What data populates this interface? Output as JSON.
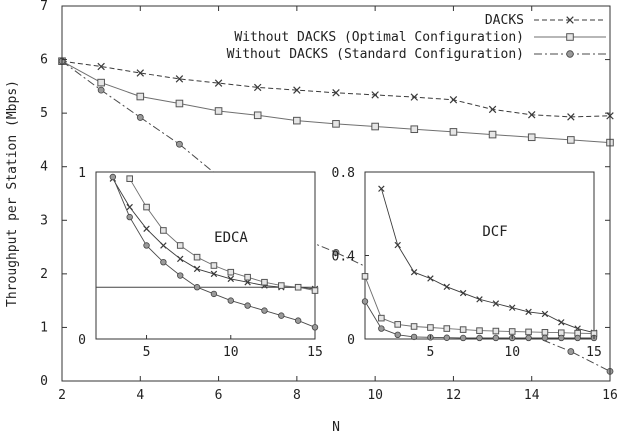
{
  "chart_data": [
    {
      "type": "line",
      "xlabel": "N",
      "ylabel": "Throughput per Station (Mbps)",
      "xlim": [
        2,
        16
      ],
      "ylim": [
        0,
        7
      ],
      "xticks": [
        2,
        4,
        6,
        8,
        10,
        12,
        14,
        16
      ],
      "yticks": [
        0,
        1,
        2,
        3,
        4,
        5,
        6,
        7
      ],
      "grid": false,
      "legend_position": "top-right",
      "series": [
        {
          "name": "DACKS",
          "marker": "x",
          "line": "dashed",
          "points": [
            [
              2,
              5.97
            ],
            [
              3,
              5.87
            ],
            [
              4,
              5.75
            ],
            [
              5,
              5.64
            ],
            [
              6,
              5.56
            ],
            [
              7,
              5.48
            ],
            [
              8,
              5.43
            ],
            [
              9,
              5.38
            ],
            [
              10,
              5.34
            ],
            [
              11,
              5.3
            ],
            [
              12,
              5.25
            ],
            [
              13,
              5.07
            ],
            [
              14,
              4.97
            ],
            [
              15,
              4.93
            ],
            [
              16,
              4.95
            ]
          ]
        },
        {
          "name": "Without DACKS (Optimal Configuration)",
          "marker": "square",
          "line": "solid",
          "points": [
            [
              2,
              5.97
            ],
            [
              3,
              5.57
            ],
            [
              4,
              5.31
            ],
            [
              5,
              5.18
            ],
            [
              6,
              5.04
            ],
            [
              7,
              4.96
            ],
            [
              8,
              4.86
            ],
            [
              9,
              4.8
            ],
            [
              10,
              4.75
            ],
            [
              11,
              4.7
            ],
            [
              12,
              4.65
            ],
            [
              13,
              4.6
            ],
            [
              14,
              4.55
            ],
            [
              15,
              4.5
            ],
            [
              16,
              4.45
            ]
          ]
        },
        {
          "name": "Without DACKS (Standard Configuration)",
          "marker": "circle",
          "line": "dash-dot",
          "points": [
            [
              2,
              5.97
            ],
            [
              3,
              5.43
            ],
            [
              4,
              4.92
            ],
            [
              5,
              4.42
            ],
            [
              6,
              3.82
            ],
            [
              7,
              3.25
            ],
            [
              8,
              2.7
            ],
            [
              9,
              2.4
            ],
            [
              10,
              2.05
            ],
            [
              11,
              1.75
            ],
            [
              12,
              1.45
            ],
            [
              13,
              1.15
            ],
            [
              14,
              0.85
            ],
            [
              15,
              0.55
            ],
            [
              16,
              0.18
            ]
          ]
        }
      ]
    },
    {
      "type": "line",
      "title": "EDCA",
      "xlim": [
        2,
        15
      ],
      "ylim": [
        0,
        1
      ],
      "xticks": [
        5,
        10,
        15
      ],
      "yticks": [
        0,
        1
      ],
      "hline": 0.31,
      "series": [
        {
          "name": "DACKS",
          "marker": "x",
          "points": [
            [
              3,
              0.96
            ],
            [
              4,
              0.79
            ],
            [
              5,
              0.66
            ],
            [
              6,
              0.56
            ],
            [
              7,
              0.48
            ],
            [
              8,
              0.42
            ],
            [
              9,
              0.39
            ],
            [
              10,
              0.36
            ],
            [
              11,
              0.34
            ],
            [
              12,
              0.32
            ],
            [
              13,
              0.31
            ],
            [
              14,
              0.31
            ],
            [
              15,
              0.3
            ]
          ]
        },
        {
          "name": "Without DACKS (Optimal Configuration)",
          "marker": "square",
          "points": [
            [
              4,
              0.96
            ],
            [
              5,
              0.79
            ],
            [
              6,
              0.65
            ],
            [
              7,
              0.56
            ],
            [
              8,
              0.49
            ],
            [
              9,
              0.44
            ],
            [
              10,
              0.4
            ],
            [
              11,
              0.37
            ],
            [
              12,
              0.34
            ],
            [
              13,
              0.32
            ],
            [
              14,
              0.31
            ],
            [
              15,
              0.29
            ]
          ]
        },
        {
          "name": "Without DACKS (Standard Configuration)",
          "marker": "circle",
          "points": [
            [
              3,
              0.97
            ],
            [
              4,
              0.73
            ],
            [
              5,
              0.56
            ],
            [
              6,
              0.46
            ],
            [
              7,
              0.38
            ],
            [
              8,
              0.31
            ],
            [
              9,
              0.27
            ],
            [
              10,
              0.23
            ],
            [
              11,
              0.2
            ],
            [
              12,
              0.17
            ],
            [
              13,
              0.14
            ],
            [
              14,
              0.11
            ],
            [
              15,
              0.07
            ]
          ]
        }
      ]
    },
    {
      "type": "line",
      "title": "DCF",
      "xlim": [
        1,
        15
      ],
      "ylim": [
        0,
        0.8
      ],
      "xticks": [
        5,
        10,
        15
      ],
      "yticks": [
        0,
        0.4,
        0.8
      ],
      "series": [
        {
          "name": "DACKS",
          "marker": "x",
          "points": [
            [
              2,
              0.72
            ],
            [
              3,
              0.45
            ],
            [
              4,
              0.32
            ],
            [
              5,
              0.29
            ],
            [
              6,
              0.25
            ],
            [
              7,
              0.22
            ],
            [
              8,
              0.19
            ],
            [
              9,
              0.17
            ],
            [
              10,
              0.15
            ],
            [
              11,
              0.13
            ],
            [
              12,
              0.12
            ],
            [
              13,
              0.08
            ],
            [
              14,
              0.05
            ],
            [
              15,
              0.03
            ]
          ]
        },
        {
          "name": "Without DACKS (Optimal Configuration)",
          "marker": "square",
          "points": [
            [
              1,
              0.3
            ],
            [
              2,
              0.1
            ],
            [
              3,
              0.07
            ],
            [
              4,
              0.06
            ],
            [
              5,
              0.055
            ],
            [
              6,
              0.05
            ],
            [
              7,
              0.045
            ],
            [
              8,
              0.04
            ],
            [
              9,
              0.038
            ],
            [
              10,
              0.036
            ],
            [
              11,
              0.034
            ],
            [
              12,
              0.032
            ],
            [
              13,
              0.03
            ],
            [
              14,
              0.028
            ],
            [
              15,
              0.026
            ]
          ]
        },
        {
          "name": "Without DACKS (Standard Configuration)",
          "marker": "circle",
          "points": [
            [
              1,
              0.18
            ],
            [
              2,
              0.05
            ],
            [
              3,
              0.02
            ],
            [
              4,
              0.01
            ],
            [
              5,
              0.008
            ],
            [
              6,
              0.006
            ],
            [
              7,
              0.005
            ],
            [
              8,
              0.005
            ],
            [
              9,
              0.005
            ],
            [
              10,
              0.005
            ],
            [
              11,
              0.005
            ],
            [
              12,
              0.005
            ],
            [
              13,
              0.005
            ],
            [
              14,
              0.005
            ],
            [
              15,
              0.005
            ]
          ]
        }
      ]
    }
  ]
}
